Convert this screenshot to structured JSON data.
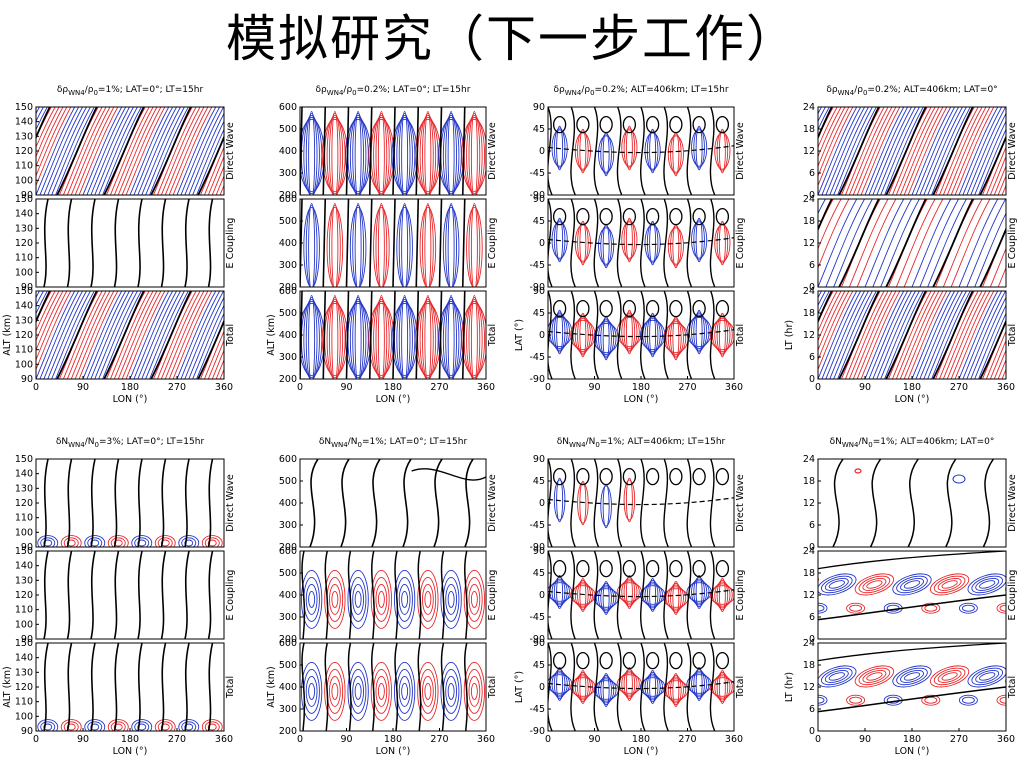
{
  "title": "模拟研究（下一步工作）",
  "colors": {
    "positive": "#e8262a",
    "negative": "#2335c8",
    "zero": "#000000"
  },
  "panels": [
    {
      "title_parts": [
        "δρ",
        "WN4",
        "/ρ",
        "0",
        "=1%;  LAT=0°;  LT=15hr"
      ],
      "ylabel": "ALT (km)",
      "xlabel": "LON (°)",
      "xticks": [
        "0",
        "90",
        "180",
        "270",
        "360"
      ],
      "yticks": [
        "90",
        "100",
        "110",
        "120",
        "130",
        "140",
        "150"
      ],
      "rows": [
        "Direct Wave",
        "E Coupling",
        "Total"
      ]
    },
    {
      "title_parts": [
        "δρ",
        "WN4",
        "/ρ",
        "0",
        "=0.2%;  LAT=0°;  LT=15hr"
      ],
      "ylabel": "ALT (km)",
      "xlabel": "LON (°)",
      "xticks": [
        "0",
        "90",
        "180",
        "270",
        "360"
      ],
      "yticks": [
        "200",
        "300",
        "400",
        "500",
        "600"
      ],
      "rows": [
        "Direct Wave",
        "E Coupling",
        "Total"
      ]
    },
    {
      "title_parts": [
        "δρ",
        "WN4",
        "/ρ",
        "0",
        "=0.2%;  ALT=406km;  LT=15hr"
      ],
      "ylabel": "LAT (°)",
      "xlabel": "LON (°)",
      "xticks": [
        "0",
        "90",
        "180",
        "270",
        "360"
      ],
      "yticks": [
        "-90",
        "-45",
        "0",
        "45",
        "90"
      ],
      "rows": [
        "Direct Wave",
        "E Coupling",
        "Total"
      ]
    },
    {
      "title_parts": [
        "δρ",
        "WN4",
        "/ρ",
        "0",
        "=0.2%;  ALT=406km;  LAT=0°"
      ],
      "ylabel": "LT (hr)",
      "xlabel": "LON (°)",
      "xticks": [
        "0",
        "90",
        "180",
        "270",
        "360"
      ],
      "yticks": [
        "0",
        "6",
        "12",
        "18",
        "24"
      ],
      "rows": [
        "Direct Wave",
        "E Coupling",
        "Total"
      ]
    },
    {
      "title_parts": [
        "δN",
        "WN4",
        "/N",
        "0",
        "=3%;  LAT=0°;  LT=15hr"
      ],
      "ylabel": "ALT (km)",
      "xlabel": "LON (°)",
      "xticks": [
        "0",
        "90",
        "180",
        "270",
        "360"
      ],
      "yticks": [
        "90",
        "100",
        "110",
        "120",
        "130",
        "140",
        "150"
      ],
      "rows": [
        "Direct Wave",
        "E Coupling",
        "Total"
      ]
    },
    {
      "title_parts": [
        "δN",
        "WN4",
        "/N",
        "0",
        "=1%;  LAT=0°;  LT=15hr"
      ],
      "ylabel": "ALT (km)",
      "xlabel": "LON (°)",
      "xticks": [
        "0",
        "90",
        "180",
        "270",
        "360"
      ],
      "yticks": [
        "200",
        "300",
        "400",
        "500",
        "600"
      ],
      "rows": [
        "Direct Wave",
        "E Coupling",
        "Total"
      ]
    },
    {
      "title_parts": [
        "δN",
        "WN4",
        "/N",
        "0",
        "=1%;  ALT=406km;  LT=15hr"
      ],
      "ylabel": "LAT (°)",
      "xlabel": "LON (°)",
      "xticks": [
        "0",
        "90",
        "180",
        "270",
        "360"
      ],
      "yticks": [
        "-90",
        "-45",
        "0",
        "45",
        "90"
      ],
      "rows": [
        "Direct Wave",
        "E Coupling",
        "Total"
      ]
    },
    {
      "title_parts": [
        "δN",
        "WN4",
        "/N",
        "0",
        "=1%;  ALT=406km;  LAT=0°"
      ],
      "ylabel": "LT (hr)",
      "xlabel": "LON (°)",
      "xticks": [
        "0",
        "90",
        "180",
        "270",
        "360"
      ],
      "yticks": [
        "0",
        "6",
        "12",
        "18",
        "24"
      ],
      "rows": [
        "Direct Wave",
        "E Coupling",
        "Total"
      ]
    }
  ]
}
